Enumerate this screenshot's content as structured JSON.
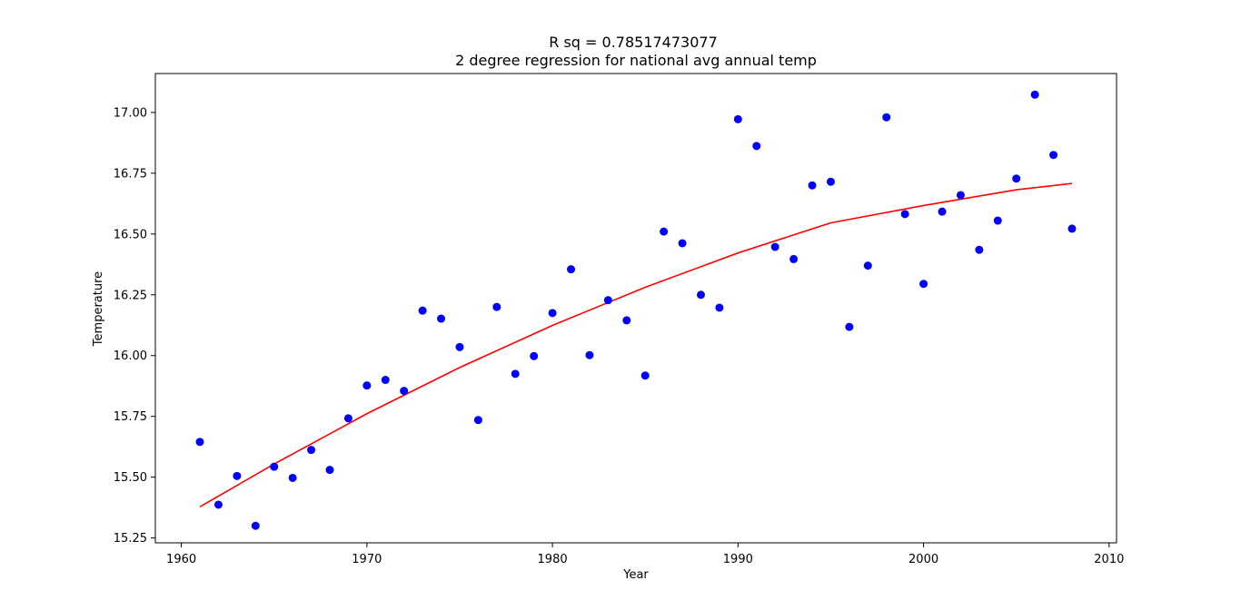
{
  "chart_data": {
    "type": "scatter",
    "title": "R sq = 0.78517473077",
    "subtitle": "2 degree regression for national avg annual temp",
    "xlabel": "Year",
    "ylabel": "Temperature",
    "xlim": [
      1958.6,
      2010.4
    ],
    "ylim": [
      15.23,
      17.16
    ],
    "xticks": [
      1960,
      1970,
      1980,
      1990,
      2000,
      2010
    ],
    "yticks": [
      "15.25",
      "15.50",
      "15.75",
      "16.00",
      "16.25",
      "16.50",
      "16.75",
      "17.00"
    ],
    "grid": false,
    "series": [
      {
        "kind": "points",
        "color": "#0000ff",
        "x": [
          1961,
          1962,
          1963,
          1964,
          1965,
          1966,
          1967,
          1968,
          1969,
          1970,
          1971,
          1972,
          1973,
          1974,
          1975,
          1976,
          1977,
          1978,
          1979,
          1980,
          1981,
          1982,
          1983,
          1984,
          1985,
          1986,
          1987,
          1988,
          1989,
          1990,
          1991,
          1992,
          1993,
          1994,
          1995,
          1996,
          1997,
          1998,
          1999,
          2000,
          2001,
          2002,
          2003,
          2004,
          2005,
          2006,
          2007,
          2008
        ],
        "y": [
          15.645,
          15.387,
          15.505,
          15.3,
          15.543,
          15.497,
          15.612,
          15.53,
          15.742,
          15.877,
          15.9,
          15.855,
          16.185,
          16.152,
          16.035,
          15.735,
          16.2,
          15.925,
          15.998,
          16.175,
          16.355,
          16.002,
          16.228,
          16.145,
          15.918,
          16.51,
          16.462,
          16.25,
          16.197,
          16.972,
          16.862,
          16.447,
          16.397,
          16.7,
          16.715,
          16.118,
          16.37,
          16.98,
          16.582,
          16.295,
          16.592,
          16.66,
          16.435,
          16.555,
          16.728,
          17.073,
          16.825,
          16.522
        ]
      },
      {
        "kind": "fit",
        "color": "#ff0000",
        "x": [
          1961,
          1965,
          1970,
          1975,
          1980,
          1985,
          1990,
          1995,
          2000,
          2005,
          2008
        ],
        "y": [
          15.378,
          15.554,
          15.761,
          15.951,
          16.124,
          16.281,
          16.422,
          16.546,
          16.617,
          16.682,
          16.708
        ]
      }
    ]
  }
}
